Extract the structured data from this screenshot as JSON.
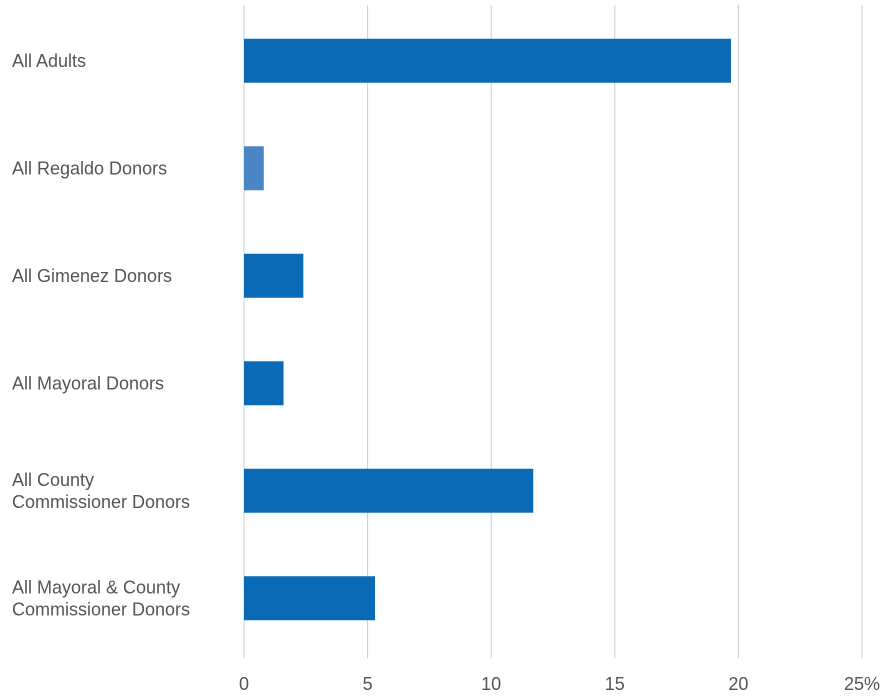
{
  "chart_data": {
    "type": "bar",
    "orientation": "horizontal",
    "title": "",
    "xlabel": "",
    "ylabel": "",
    "categories": [
      [
        "All Adults"
      ],
      [
        "All Regaldo Donors"
      ],
      [
        "All Gimenez Donors"
      ],
      [
        "All Mayoral Donors"
      ],
      [
        "All County",
        "Commissioner Donors"
      ],
      [
        "All Mayoral & County",
        "Commissioner Donors"
      ]
    ],
    "values": [
      19.7,
      0.8,
      2.4,
      1.6,
      11.7,
      5.3
    ],
    "bar_colors": [
      "#0a6ab5",
      "#4a85c6",
      "#0a6ab5",
      "#0a6ab5",
      "#0a6ab5",
      "#0a6ab5"
    ],
    "xlim": [
      0,
      25
    ],
    "ticks": [
      0,
      5,
      10,
      15,
      20,
      25
    ],
    "tick_labels": [
      "0",
      "5",
      "10",
      "15",
      "20",
      "25%"
    ],
    "grid": true,
    "legend": "none"
  }
}
